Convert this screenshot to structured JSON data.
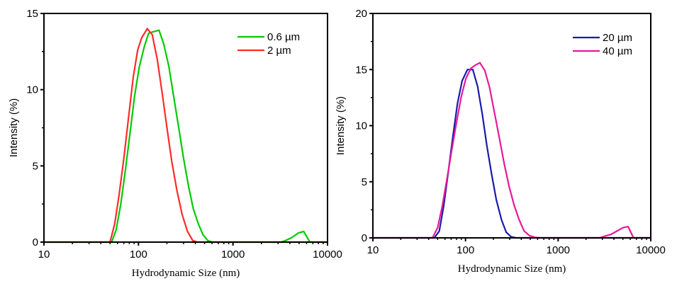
{
  "chart_data": [
    {
      "type": "line",
      "title": "",
      "xlabel": "Hydrodynamic Size (nm)",
      "ylabel": "Intensity (%)",
      "xscale": "log",
      "xlim": [
        10,
        10000
      ],
      "ylim": [
        0,
        15
      ],
      "xticks": [
        10,
        100,
        1000,
        10000
      ],
      "xtick_labels": [
        "10",
        "100",
        "1000",
        "10000"
      ],
      "yticks": [
        0,
        5,
        10,
        15
      ],
      "ytick_labels": [
        "0",
        "5",
        "10",
        "15"
      ],
      "legend_position": "top-right",
      "grid": false,
      "series": [
        {
          "name": "0.6 µm",
          "color": "#00cc00",
          "x": [
            10,
            52,
            58,
            65,
            73,
            82,
            91,
            102,
            115,
            128,
            144,
            165,
            185,
            210,
            235,
            265,
            300,
            340,
            380,
            430,
            480,
            540,
            610,
            3200,
            3600,
            4200,
            4900,
            5600,
            6500,
            10000
          ],
          "y": [
            0,
            0,
            0.8,
            2.5,
            4.8,
            7.3,
            9.6,
            11.5,
            12.8,
            13.7,
            13.8,
            13.9,
            13.0,
            11.5,
            9.6,
            7.6,
            5.5,
            3.6,
            2.2,
            1.2,
            0.5,
            0.1,
            0,
            0,
            0.1,
            0.3,
            0.6,
            0.7,
            0,
            0
          ]
        },
        {
          "name": "2 µm",
          "color": "#ff2a2a",
          "x": [
            10,
            50,
            56,
            62,
            70,
            78,
            88,
            98,
            108,
            124,
            140,
            158,
            178,
            200,
            225,
            255,
            290,
            330,
            375,
            420,
            10000
          ],
          "y": [
            0,
            0,
            1.2,
            3.0,
            5.5,
            8.0,
            10.8,
            12.6,
            13.4,
            14.0,
            13.6,
            12.0,
            9.8,
            7.5,
            5.3,
            3.4,
            1.8,
            0.7,
            0.1,
            0,
            0
          ]
        }
      ]
    },
    {
      "type": "line",
      "title": "",
      "xlabel": "Hydrodynamic Size (nm)",
      "ylabel": "Intensity (%)",
      "xscale": "log",
      "xlim": [
        10,
        10000
      ],
      "ylim": [
        0,
        20
      ],
      "xticks": [
        10,
        100,
        1000,
        10000
      ],
      "xtick_labels": [
        "10",
        "100",
        "1000",
        "10000"
      ],
      "yticks": [
        0,
        5,
        10,
        15,
        20
      ],
      "ytick_labels": [
        "0",
        "5",
        "10",
        "15",
        "20"
      ],
      "legend_position": "top-right",
      "grid": false,
      "series": [
        {
          "name": "20 µm",
          "color": "#1a1aaa",
          "x": [
            10,
            46,
            52,
            58,
            65,
            73,
            82,
            92,
            105,
            120,
            135,
            152,
            170,
            192,
            215,
            245,
            275,
            310,
            350,
            10000
          ],
          "y": [
            0,
            0,
            0.6,
            2.8,
            5.8,
            9.0,
            12.0,
            14.0,
            15.0,
            15.0,
            13.5,
            11.0,
            8.2,
            5.6,
            3.4,
            1.6,
            0.5,
            0.1,
            0,
            0
          ]
        },
        {
          "name": "40 µm",
          "color": "#e6199b",
          "x": [
            10,
            44,
            50,
            56,
            63,
            71,
            80,
            90,
            101,
            114,
            128,
            143,
            162,
            182,
            205,
            232,
            262,
            295,
            335,
            380,
            430,
            490,
            560,
            640,
            2800,
            3200,
            3700,
            4300,
            5000,
            5700,
            6500,
            10000
          ],
          "y": [
            0,
            0,
            0.9,
            2.8,
            5.2,
            7.8,
            10.3,
            12.6,
            14.2,
            15.1,
            15.4,
            15.6,
            14.9,
            13.4,
            11.2,
            8.9,
            6.6,
            4.6,
            2.9,
            1.6,
            0.6,
            0.2,
            0.05,
            0,
            0,
            0.15,
            0.3,
            0.6,
            0.9,
            1.0,
            0,
            0
          ]
        }
      ]
    }
  ]
}
